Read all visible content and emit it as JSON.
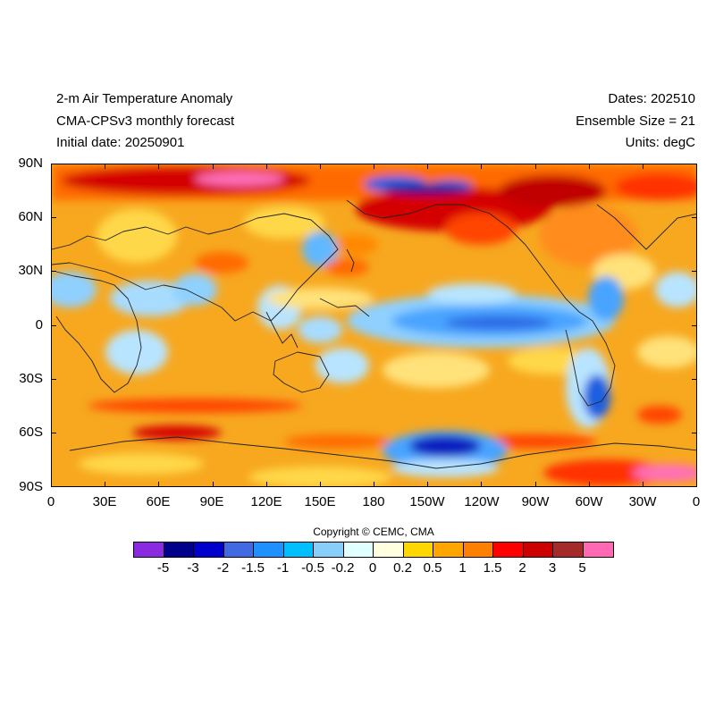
{
  "header": {
    "title": "2-m Air Temperature Anomaly",
    "model": "CMA-CPSv3 monthly forecast",
    "initial_date": "Initial date: 20250901",
    "dates": "Dates: 202510",
    "ensemble": "Ensemble Size = 21",
    "units": "Units: degC"
  },
  "axes": {
    "y_labels": [
      "90N",
      "60N",
      "30N",
      "0",
      "30S",
      "60S",
      "90S"
    ],
    "x_labels": [
      "0",
      "30E",
      "60E",
      "90E",
      "120E",
      "150E",
      "180",
      "150W",
      "120W",
      "90W",
      "60W",
      "30W",
      "0"
    ]
  },
  "copyright": "Copyright © CEMC, CMA",
  "colorbar": {
    "colors": [
      "#8a2be2",
      "#00008b",
      "#0000cd",
      "#4169e1",
      "#1e90ff",
      "#00bfff",
      "#87cefa",
      "#e0ffff",
      "#ffffe0",
      "#ffd700",
      "#ffa500",
      "#ff7f00",
      "#ff0000",
      "#cd0000",
      "#a52a2a",
      "#ff69b4"
    ],
    "labels": [
      "-5",
      "-3",
      "-2",
      "-1.5",
      "-1",
      "-0.5",
      "-0.2",
      "0",
      "0.2",
      "0.5",
      "1",
      "1.5",
      "2",
      "3",
      "5"
    ]
  }
}
